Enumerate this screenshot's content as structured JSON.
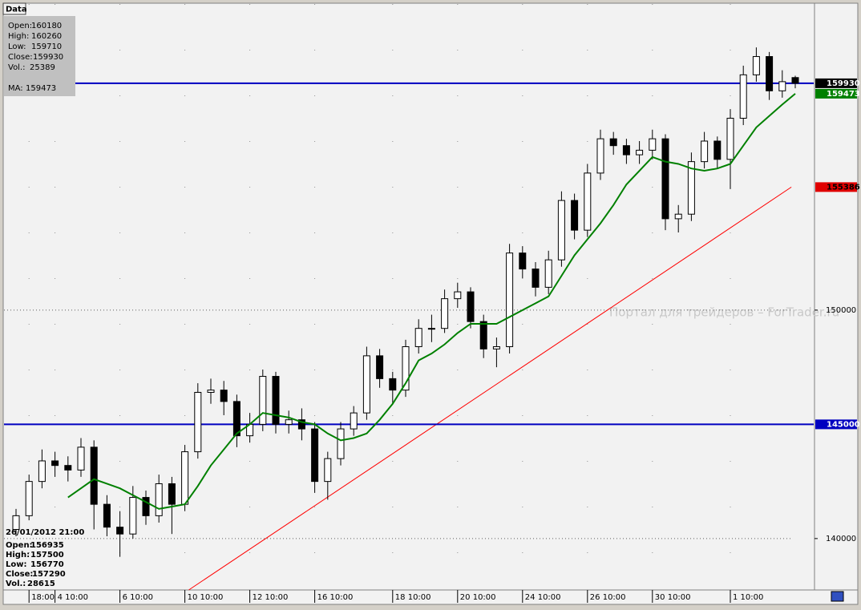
{
  "chart_data": {
    "type": "candlestick",
    "tab": "Data",
    "watermark": "Портал для трейдеров – ForTrader.ru",
    "info_labels": [
      "Open:",
      "High:",
      "Low:",
      "Close:",
      "Vol.:"
    ],
    "ma_label": "MA:",
    "last_volume": 25389,
    "hover": {
      "date": "26/01/2012 21:00",
      "open": 156935,
      "high": 157500,
      "low": 156770,
      "close": 157290,
      "volume": 28615
    },
    "categories": [
      null,
      "18:00",
      null,
      "4 10:00",
      null,
      null,
      null,
      null,
      "6 10:00",
      null,
      null,
      null,
      null,
      "10 10:00",
      null,
      null,
      null,
      null,
      "12 10:00",
      null,
      null,
      null,
      null,
      "16 10:00",
      null,
      null,
      null,
      null,
      null,
      "18 10:00",
      null,
      null,
      null,
      null,
      "20 10:00",
      null,
      null,
      null,
      null,
      "24 10:00",
      null,
      null,
      null,
      null,
      "26 10:00",
      null,
      null,
      null,
      null,
      "30 10:00",
      null,
      null,
      null,
      null,
      null,
      "1 10:00",
      null,
      null,
      null,
      null,
      null
    ],
    "candles": [
      [
        140400,
        141300,
        140100,
        141000
      ],
      [
        141000,
        142800,
        140800,
        142500
      ],
      [
        142500,
        143900,
        142200,
        143400
      ],
      [
        143400,
        143800,
        142700,
        143200
      ],
      [
        143200,
        143600,
        142500,
        143000
      ],
      [
        143000,
        144400,
        142700,
        144000
      ],
      [
        144000,
        144300,
        140400,
        141500
      ],
      [
        141500,
        141900,
        140100,
        140500
      ],
      [
        140500,
        141200,
        139200,
        140200
      ],
      [
        140200,
        142300,
        140000,
        141800
      ],
      [
        141800,
        142100,
        140600,
        141000
      ],
      [
        141000,
        142800,
        140700,
        142400
      ],
      [
        142400,
        142700,
        140200,
        141500
      ],
      [
        141500,
        144100,
        141200,
        143800
      ],
      [
        143800,
        146800,
        143500,
        146400
      ],
      [
        146400,
        147000,
        145900,
        146500
      ],
      [
        146500,
        146900,
        145400,
        146000
      ],
      [
        146000,
        146300,
        144000,
        144500
      ],
      [
        144500,
        145500,
        144200,
        145000
      ],
      [
        145000,
        147400,
        144700,
        147100
      ],
      [
        147100,
        147300,
        144600,
        145000
      ],
      [
        145000,
        145600,
        144600,
        145200
      ],
      [
        145200,
        145700,
        144300,
        144800
      ],
      [
        144800,
        145100,
        142000,
        142500
      ],
      [
        142500,
        143800,
        141700,
        143500
      ],
      [
        143500,
        145100,
        143200,
        144800
      ],
      [
        144800,
        145800,
        144500,
        145500
      ],
      [
        145500,
        148400,
        145200,
        148000
      ],
      [
        148000,
        148300,
        146600,
        147000
      ],
      [
        147000,
        147300,
        145900,
        146500
      ],
      [
        146500,
        148700,
        146200,
        148400
      ],
      [
        148400,
        149600,
        148100,
        149200
      ],
      [
        149200,
        149800,
        148600,
        149200
      ],
      [
        149200,
        150900,
        149000,
        150500
      ],
      [
        150500,
        151200,
        150100,
        150800
      ],
      [
        150800,
        151000,
        149200,
        149500
      ],
      [
        149500,
        149800,
        147900,
        148300
      ],
      [
        148300,
        148800,
        147500,
        148400
      ],
      [
        148400,
        152900,
        148100,
        152500
      ],
      [
        152500,
        152800,
        151400,
        151800
      ],
      [
        151800,
        152100,
        150600,
        151000
      ],
      [
        151000,
        152600,
        150700,
        152200
      ],
      [
        152200,
        155200,
        151900,
        154800
      ],
      [
        154800,
        155100,
        153100,
        153500
      ],
      [
        153500,
        156400,
        153200,
        156000
      ],
      [
        156000,
        157900,
        155700,
        157500
      ],
      [
        157500,
        157800,
        156800,
        157200
      ],
      [
        157200,
        157500,
        156400,
        156800
      ],
      [
        156800,
        157400,
        156400,
        157000
      ],
      [
        157000,
        157900,
        156600,
        157500
      ],
      [
        157500,
        157700,
        153500,
        154000
      ],
      [
        154000,
        154600,
        153400,
        154200
      ],
      [
        154200,
        156900,
        153900,
        156500
      ],
      [
        156500,
        157800,
        156200,
        157400
      ],
      [
        157400,
        157600,
        156200,
        156600
      ],
      [
        156600,
        158800,
        155300,
        158400
      ],
      [
        158400,
        160700,
        158100,
        160300
      ],
      [
        160300,
        161500,
        160000,
        161100
      ],
      [
        161100,
        161300,
        159200,
        159600
      ],
      [
        159600,
        160500,
        159300,
        160000
      ],
      [
        160180,
        160260,
        159710,
        159930
      ]
    ],
    "ma": {
      "color": "#008000",
      "values": [
        null,
        null,
        null,
        null,
        141800,
        142200,
        142600,
        142400,
        142200,
        141900,
        141600,
        141300,
        141400,
        141500,
        142300,
        143200,
        143900,
        144600,
        145000,
        145500,
        145400,
        145300,
        145100,
        145000,
        144600,
        144300,
        144400,
        144600,
        145200,
        145900,
        146800,
        147800,
        148100,
        148500,
        149000,
        149400,
        149400,
        149400,
        149700,
        150000,
        150300,
        150600,
        151500,
        152400,
        153100,
        153800,
        154600,
        155500,
        156100,
        156700,
        156500,
        156400,
        156200,
        156100,
        156200,
        156400,
        157200,
        158000,
        158500,
        159000,
        159473
      ]
    },
    "levels": [
      {
        "value": 159930,
        "color": "#0000c0"
      },
      {
        "value": 145000,
        "color": "#0000c0"
      }
    ],
    "trend": {
      "start": [
        13.3,
        137750
      ],
      "end": [
        59.7,
        155386
      ],
      "color": "#ff0000"
    },
    "ylim": [
      137750,
      163400
    ],
    "yticks": [
      140000,
      150000
    ]
  }
}
